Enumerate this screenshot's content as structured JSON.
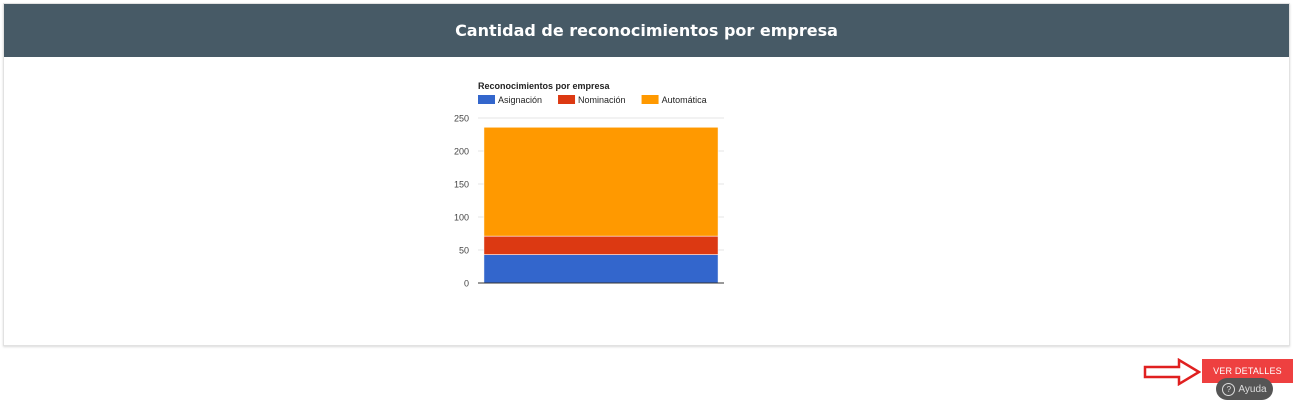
{
  "header": {
    "title": "Cantidad de reconocimientos por empresa"
  },
  "chart_data": {
    "type": "bar",
    "stacked": true,
    "title": "Reconocimientos por empresa",
    "legend_position": "top-left",
    "categories": [
      ""
    ],
    "series": [
      {
        "name": "Asignación",
        "color": "#3366cc",
        "values": [
          43
        ]
      },
      {
        "name": "Nominación",
        "color": "#dc3912",
        "values": [
          28
        ]
      },
      {
        "name": "Automática",
        "color": "#ff9900",
        "values": [
          165
        ]
      }
    ],
    "yticks": [
      "0",
      "50",
      "100",
      "150",
      "200",
      "250"
    ],
    "ylim": [
      0,
      250
    ],
    "grid": true
  },
  "actions": {
    "details_label": "VER DETALLES"
  },
  "help": {
    "label": "Ayuda",
    "icon": "question-circle-icon"
  },
  "colors": {
    "header_bg": "#475a66",
    "button_bg": "#ee4040",
    "arrow": "#e02020"
  }
}
